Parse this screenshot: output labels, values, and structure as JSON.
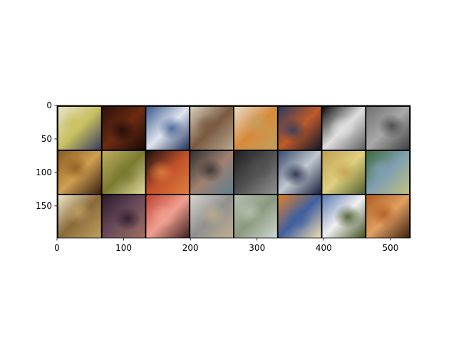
{
  "figure": {
    "x_axis": {
      "range": [
        0,
        530
      ],
      "ticks": [
        0,
        100,
        200,
        300,
        400,
        500
      ],
      "tick_labels": [
        "0",
        "100",
        "200",
        "300",
        "400",
        "500"
      ]
    },
    "y_axis": {
      "range": [
        198,
        0
      ],
      "inverted": true,
      "ticks": [
        0,
        50,
        100,
        150
      ],
      "tick_labels": [
        "0",
        "50",
        "100",
        "150"
      ]
    },
    "grid": {
      "rows": 3,
      "cols": 8,
      "tile_size": 64,
      "padding": 2,
      "border_color": "#000000"
    },
    "tiles": [
      {
        "description": "pale abstract with yellow-green and dark blue strokes",
        "colors": [
          "#e8e2c8",
          "#c8c060",
          "#3a3a60"
        ]
      },
      {
        "description": "dark reddish-brown scene with murky figures",
        "colors": [
          "#2a120a",
          "#6a2a12",
          "#1a0a06"
        ]
      },
      {
        "description": "blue sky with white clouds",
        "colors": [
          "#3a5a90",
          "#dfe4ee",
          "#20305a"
        ]
      },
      {
        "description": "beige figure composition with brown shapes",
        "colors": [
          "#d8cfbd",
          "#7a5a40",
          "#b8a890"
        ]
      },
      {
        "description": "light figure with orange and yellow accents",
        "colors": [
          "#e6dccb",
          "#d88a3a",
          "#c0a060"
        ]
      },
      {
        "description": "dark blue background with orange figure",
        "colors": [
          "#2a3a60",
          "#c05a2a",
          "#10182a"
        ]
      },
      {
        "description": "black and white portrait with strong contrast",
        "colors": [
          "#0a0a0a",
          "#e0e0e0",
          "#606060"
        ]
      },
      {
        "description": "gray textured monochrome",
        "colors": [
          "#707070",
          "#a8a8a8",
          "#404040"
        ]
      },
      {
        "description": "golden brown figures in warm light",
        "colors": [
          "#8a5a20",
          "#d0a050",
          "#3a2010"
        ]
      },
      {
        "description": "yellow landscape with buildings",
        "colors": [
          "#c0b060",
          "#7a7a30",
          "#e0d8a0"
        ]
      },
      {
        "description": "orange shapes on dark background",
        "colors": [
          "#1a1010",
          "#c0502a",
          "#e08040"
        ]
      },
      {
        "description": "colorful mixed shapes on dark ground",
        "colors": [
          "#303030",
          "#a08070",
          "#608090"
        ]
      },
      {
        "description": "dark monochrome figure scene",
        "colors": [
          "#202020",
          "#505050",
          "#909090"
        ]
      },
      {
        "description": "blue seascape with pale forms",
        "colors": [
          "#3a4a70",
          "#c0c8d0",
          "#1a2040"
        ]
      },
      {
        "description": "golden landscape with tree",
        "colors": [
          "#c0a050",
          "#e0d080",
          "#506030"
        ]
      },
      {
        "description": "green and blue foliage",
        "colors": [
          "#3a6a3a",
          "#80a0b0",
          "#c0c080"
        ]
      },
      {
        "description": "pale cream with brown sketch figure",
        "colors": [
          "#efe6c4",
          "#8a6a3a",
          "#c0a060"
        ]
      },
      {
        "description": "dark purple portrait",
        "colors": [
          "#2a1a2a",
          "#6a4a5a",
          "#a07060"
        ]
      },
      {
        "description": "red and pink decorative pattern",
        "colors": [
          "#c04030",
          "#f0a090",
          "#402020"
        ]
      },
      {
        "description": "light gray sketch with light figures",
        "colors": [
          "#d8d8d0",
          "#909090",
          "#c0b090"
        ]
      },
      {
        "description": "misty gray-green landscape",
        "colors": [
          "#b8c0b0",
          "#8a9a80",
          "#d0d8d0"
        ]
      },
      {
        "description": "colorful figures with orange and blue",
        "colors": [
          "#e08030",
          "#4060a0",
          "#f0e0b0"
        ]
      },
      {
        "description": "blue sky with white figure on green",
        "colors": [
          "#5a7ab0",
          "#f0f0f0",
          "#405020"
        ]
      },
      {
        "description": "orange-brown figures in warm tones",
        "colors": [
          "#b05a20",
          "#e0a060",
          "#402010"
        ]
      }
    ]
  }
}
